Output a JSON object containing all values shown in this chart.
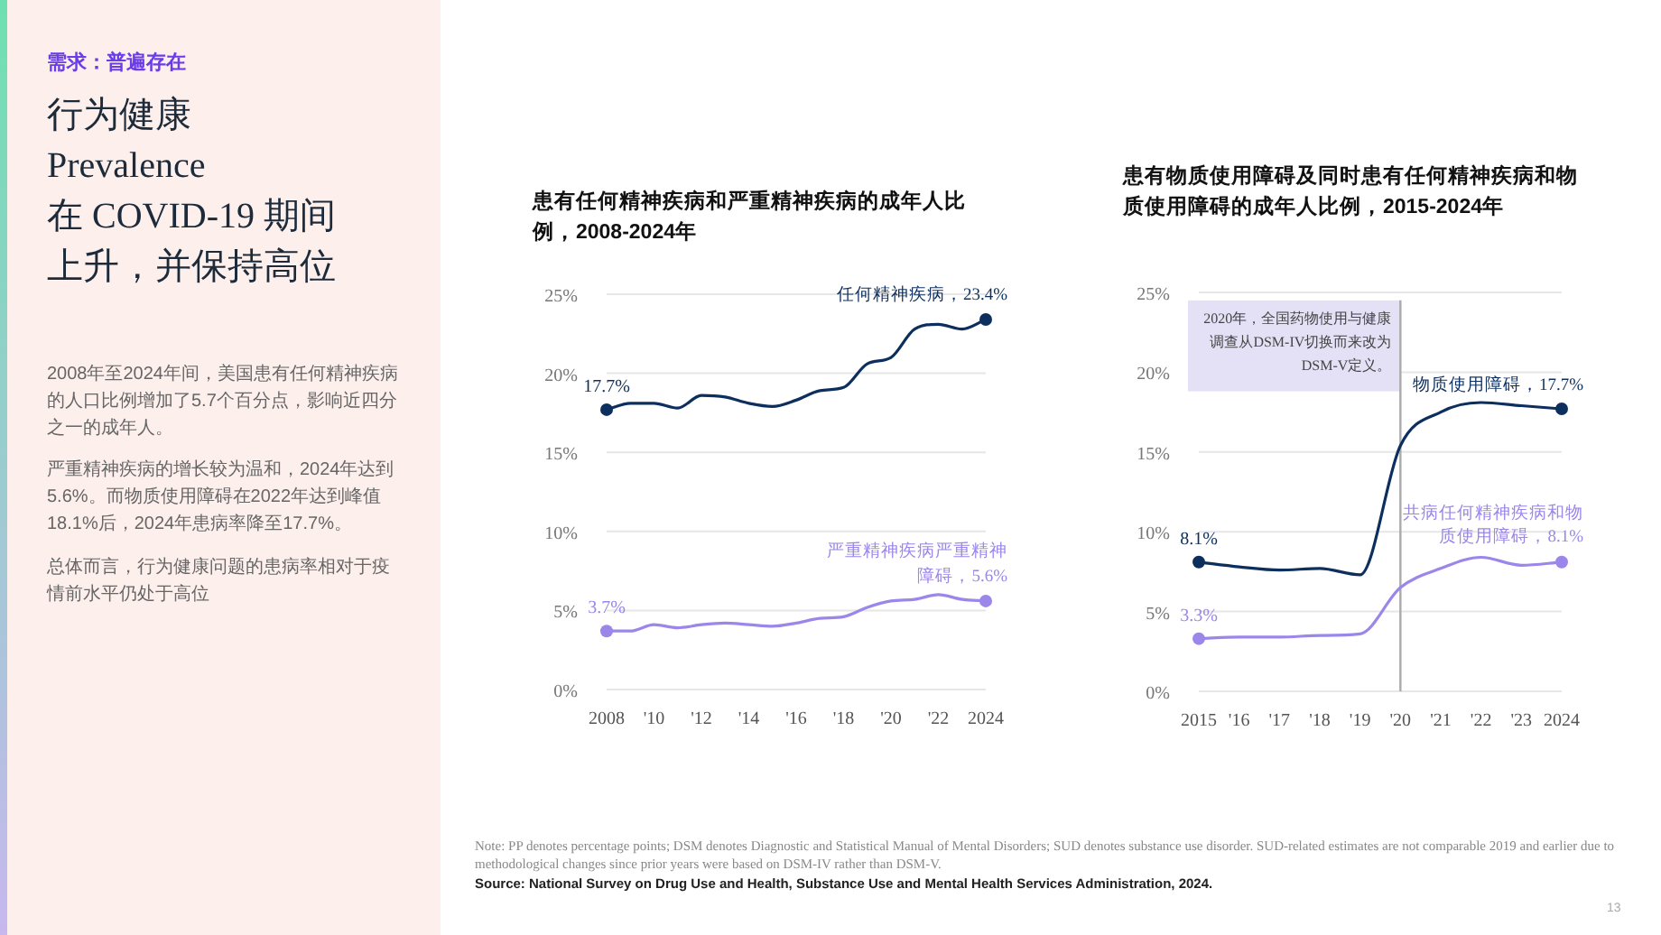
{
  "chart_data": [
    {
      "type": "other",
      "subtitle": "需求：普遍存在",
      "title": "行为健康\nPrevalence\n在 COVID-19 期间上升，并保持高位",
      "annotations": [
        "2008年至2024年间，美国患有任何精神疾病的人口比例增加了5.7个百分点，影响近四分之一的成年人。",
        "严重精神疾病的增长较为温和，2024年达到5.6%。而物质使用障碍在2022年达到峰值18.1%后，2024年患病率降至17.7%。",
        "总体而言，行为健康问题的患病率相对于疫情前水平仍处于高位"
      ]
    },
    {
      "type": "line",
      "title": "患有任何精神疾病和严重精神疾病的成年人比例，2008-2024年",
      "x": [
        2008,
        2009,
        2010,
        2011,
        2012,
        2013,
        2014,
        2015,
        2016,
        2017,
        2018,
        2019,
        2020,
        2021,
        2022,
        2023,
        2024
      ],
      "xlim": [
        2008,
        2024
      ],
      "xticks": [
        2008,
        {
          "value": 2010,
          "label": "'10"
        },
        {
          "value": 2012,
          "label": "'12"
        },
        {
          "value": 2014,
          "label": "'14"
        },
        {
          "value": 2016,
          "label": "'16"
        },
        {
          "value": 2018,
          "label": "'18"
        },
        {
          "value": 2020,
          "label": "'20"
        },
        {
          "value": 2022,
          "label": "'22"
        },
        2024
      ],
      "ylim": [
        0,
        25
      ],
      "yticks": [
        {
          "value": 0,
          "label": "0%"
        },
        {
          "value": 5,
          "label": "5%"
        },
        {
          "value": 10,
          "label": "10%"
        },
        {
          "value": 15,
          "label": "15%"
        },
        {
          "value": 20,
          "label": "20%"
        },
        {
          "value": 25,
          "label": "25%"
        }
      ],
      "grid": "y",
      "series": [
        {
          "name": "任何精神疾病，",
          "color": "#0d2f5e",
          "values": [
            17.7,
            18.1,
            18.1,
            17.8,
            18.6,
            18.5,
            18.1,
            17.9,
            18.3,
            18.9,
            19.1,
            20.6,
            21.0,
            22.8,
            23.1,
            22.8,
            23.4
          ],
          "value_labels": [
            "17.7%",
            null,
            null,
            null,
            null,
            null,
            null,
            null,
            null,
            null,
            null,
            null,
            null,
            null,
            null,
            null,
            "23.4%"
          ]
        },
        {
          "name": "严重精神疾病",
          "color": "#9b86ea",
          "values": [
            3.7,
            3.7,
            4.1,
            3.9,
            4.1,
            4.2,
            4.1,
            4.0,
            4.2,
            4.5,
            4.6,
            5.2,
            5.6,
            5.7,
            6.0,
            5.7,
            5.6
          ],
          "value_labels": [
            "3.7%",
            null,
            null,
            null,
            null,
            null,
            null,
            null,
            null,
            null,
            null,
            null,
            null,
            null,
            null,
            null,
            "严重精神障碍，5.6%"
          ]
        }
      ]
    },
    {
      "type": "line",
      "title": "患有物质使用障碍及同时患有任何精神疾病和物质使用障碍的成年人比例，2015-2024年",
      "x": [
        2015,
        2016,
        2017,
        2018,
        2019,
        2020,
        2021,
        2022,
        2023,
        2024
      ],
      "xlim": [
        2015,
        2024
      ],
      "xticks": [
        2015,
        {
          "value": 2016,
          "label": "'16"
        },
        {
          "value": 2017,
          "label": "'17"
        },
        {
          "value": 2018,
          "label": "'18"
        },
        {
          "value": 2019,
          "label": "'19"
        },
        {
          "value": 2020,
          "label": "'20"
        },
        {
          "value": 2021,
          "label": "'21"
        },
        {
          "value": 2022,
          "label": "'22"
        },
        {
          "value": 2023,
          "label": "'23"
        },
        2024
      ],
      "ylim": [
        0,
        25
      ],
      "yticks": [
        {
          "value": 0,
          "label": "0%"
        },
        {
          "value": 5,
          "label": "5%"
        },
        {
          "value": 10,
          "label": "10%"
        },
        {
          "value": 15,
          "label": "15%"
        },
        {
          "value": 20,
          "label": "20%"
        },
        {
          "value": 25,
          "label": "25%"
        }
      ],
      "grid": "y",
      "ref_lines": [
        {
          "axis": "x",
          "value": 2020,
          "label": "2020年，全国药物使用与健康调查从DSM-IV切换而来改为DSM-V定义。",
          "color": "#aaaaaa"
        }
      ],
      "series": [
        {
          "name": "物质使用障碍，",
          "color": "#0d2f5e",
          "values": [
            8.1,
            7.8,
            7.6,
            7.7,
            7.3,
            15.4,
            17.5,
            18.1,
            17.9,
            17.7
          ],
          "value_labels": [
            "8.1%",
            null,
            null,
            null,
            null,
            null,
            null,
            null,
            null,
            "17.7%"
          ]
        },
        {
          "name": "共病任何精神疾病和物质使用障碍，",
          "color": "#9b86ea",
          "values": [
            3.3,
            3.4,
            3.4,
            3.5,
            3.6,
            6.5,
            7.7,
            8.4,
            7.9,
            8.1
          ],
          "value_labels": [
            "3.3%",
            null,
            null,
            null,
            null,
            null,
            null,
            null,
            null,
            "8.1%"
          ]
        }
      ],
      "annotations": [
        "Note: PP denotes percentage points; DSM denotes Diagnostic and Statistical Manual of Mental Disorders; SUD denotes substance use disorder. SUD-related estimates are not comparable 2019 and earlier due to methodological changes since prior years were based on DSM-IV rather than DSM-V.",
        "Source: National Survey on Drug Use and Health, Substance Use and Mental Health Services Administration, 2024.",
        "13"
      ]
    }
  ]
}
